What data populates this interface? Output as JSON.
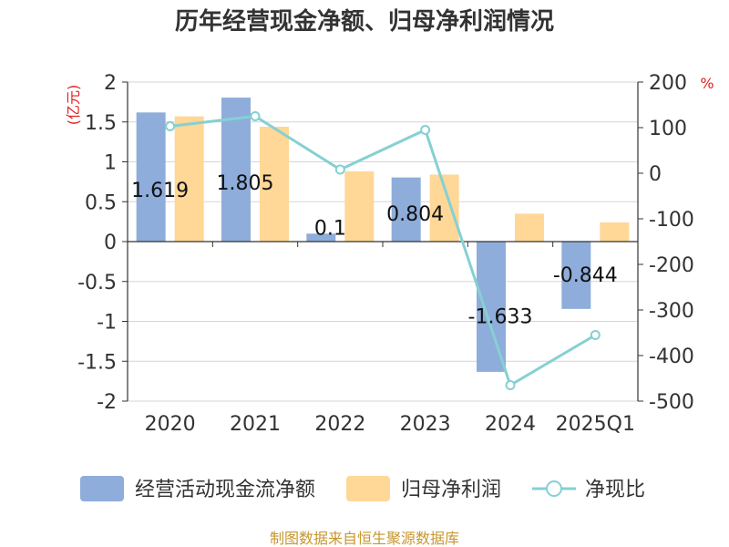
{
  "title": "历年经营现金净额、归母净利润情况",
  "source": "制图数据来自恒生聚源数据库",
  "colors": {
    "cash_flow": "#8EADDB",
    "net_profit": "#FFD797",
    "ratio": "#86D0D3",
    "unit": "#E02020",
    "source": "#C8962E"
  },
  "chart_data": {
    "type": "bar",
    "title": "历年经营现金净额、归母净利润情况",
    "categories": [
      "2020",
      "2021",
      "2022",
      "2023",
      "2024",
      "2025Q1"
    ],
    "left_axis": {
      "unit_label": "(亿元)",
      "ylim": [
        -2,
        2
      ],
      "ticks": [
        "2",
        "1.5",
        "1",
        "0.5",
        "0",
        "-0.5",
        "-1",
        "-1.5",
        "-2"
      ]
    },
    "right_axis": {
      "unit_label": "%",
      "ylim": [
        -500,
        200
      ],
      "ticks": [
        "200",
        "100",
        "0",
        "-100",
        "-200",
        "-300",
        "-400",
        "-500"
      ]
    },
    "series": [
      {
        "name": "经营活动现金流净额",
        "type": "bar",
        "axis": "left",
        "values": [
          1.619,
          1.805,
          0.1,
          0.804,
          -1.633,
          -0.844
        ],
        "labels": [
          "1.619",
          "1.805",
          "0.1",
          "0.804",
          "-1.633",
          "-0.844"
        ]
      },
      {
        "name": "归母净利润",
        "type": "bar",
        "axis": "left",
        "values": [
          1.57,
          1.44,
          0.88,
          0.84,
          0.35,
          0.24
        ]
      },
      {
        "name": "净现比",
        "type": "line",
        "axis": "right",
        "values": [
          103,
          125,
          8,
          95,
          -465,
          -355
        ]
      }
    ],
    "grid": true,
    "legend_position": "bottom"
  }
}
